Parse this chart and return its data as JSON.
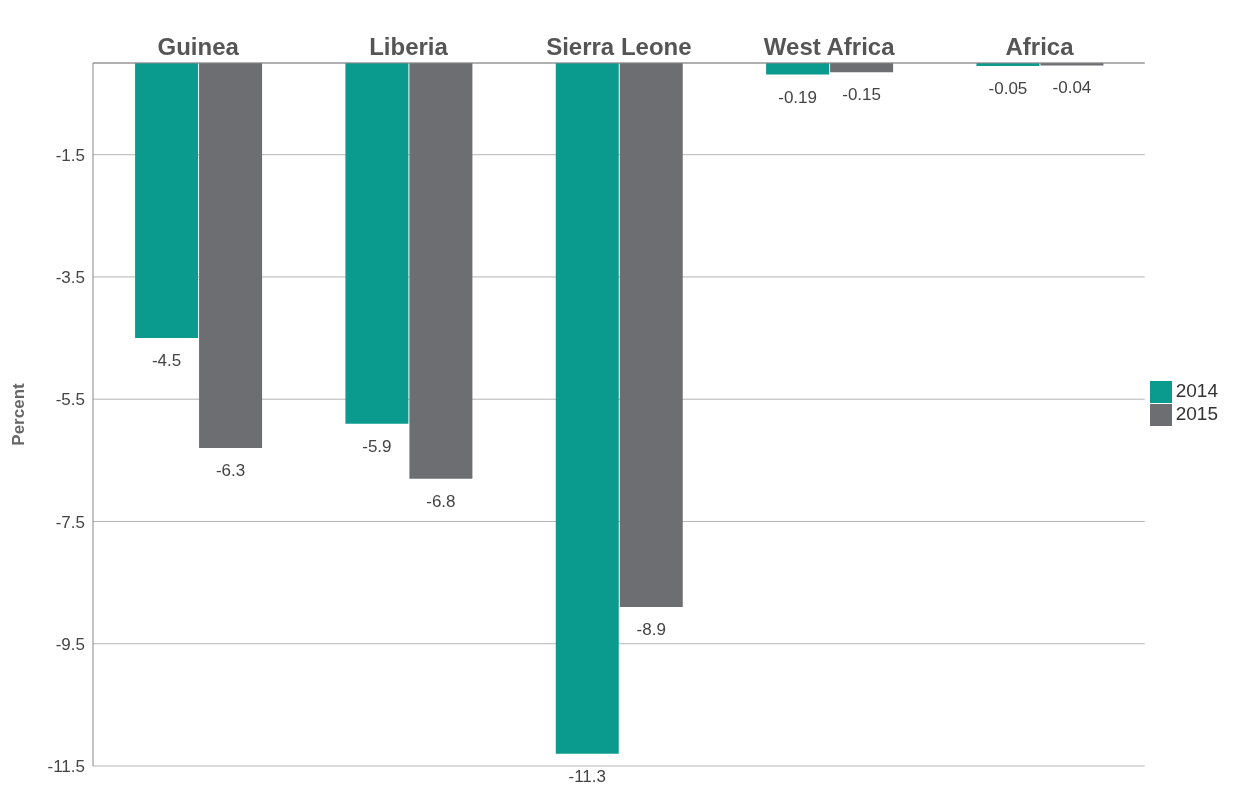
{
  "chart_data": {
    "type": "bar",
    "categories": [
      "Guinea",
      "Liberia",
      "Sierra Leone",
      "West Africa",
      "Africa"
    ],
    "ylabel": "Percent",
    "series": [
      {
        "name": "2014",
        "color": "#0b9b8e",
        "values": [
          -4.5,
          -5.9,
          -11.3,
          -0.19,
          -0.05
        ]
      },
      {
        "name": "2015",
        "color": "#6d6e71",
        "values": [
          -6.3,
          -6.8,
          -8.9,
          -0.15,
          -0.04
        ]
      }
    ],
    "ylim": [
      -11.5,
      0
    ],
    "yticks": [
      -1.5,
      -3.5,
      -5.5,
      -7.5,
      -9.5,
      -11.5
    ],
    "grid": "y",
    "legend": "right",
    "data_labels": true
  }
}
